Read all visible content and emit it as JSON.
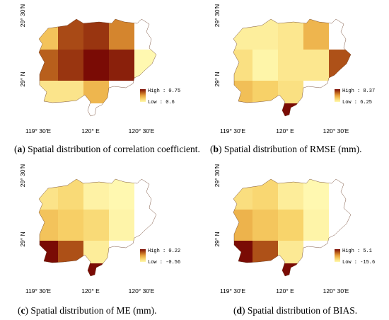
{
  "chart_data": [
    {
      "type": "heatmap",
      "panel_letter": "a",
      "caption": "Spatial distribution of correlation coefficient.",
      "legend": {
        "high_label": "High : 0.75",
        "low_label": "Low : 0.6",
        "high": 0.75,
        "low": 0.6,
        "placement": "bottom-right"
      },
      "x_ticks": [
        "119° 30′E",
        "120° E",
        "120° 30′E"
      ],
      "y_ticks": [
        "29° 30′N",
        "29° N"
      ],
      "grid_cells": [
        {
          "row": 0,
          "col": 0,
          "value": 0.65
        },
        {
          "row": 0,
          "col": 1,
          "value": 0.72
        },
        {
          "row": 0,
          "col": 2,
          "value": 0.73
        },
        {
          "row": 0,
          "col": 3,
          "value": 0.69
        },
        {
          "row": 1,
          "col": 0,
          "value": 0.71
        },
        {
          "row": 1,
          "col": 1,
          "value": 0.73
        },
        {
          "row": 1,
          "col": 2,
          "value": 0.75
        },
        {
          "row": 1,
          "col": 3,
          "value": 0.74
        },
        {
          "row": 1,
          "col": 4,
          "value": 0.6
        },
        {
          "row": 2,
          "col": 0,
          "value": 0.62
        },
        {
          "row": 2,
          "col": 1,
          "value": 0.62
        },
        {
          "row": 2,
          "col": 2,
          "value": 0.66
        }
      ]
    },
    {
      "type": "heatmap",
      "panel_letter": "b",
      "caption": "Spatial distribution of RMSE (mm).",
      "legend": {
        "high_label": "High : 8.37",
        "low_label": "Low : 6.25",
        "high": 8.37,
        "low": 6.25,
        "placement": "bottom-right"
      },
      "x_ticks": [
        "119° 30′E",
        "120° E",
        "120° 30′E"
      ],
      "y_ticks": [
        "29° 30′N",
        "29° N"
      ],
      "grid_cells": [
        {
          "row": 0,
          "col": 0,
          "value": 6.4
        },
        {
          "row": 0,
          "col": 1,
          "value": 6.4
        },
        {
          "row": 0,
          "col": 2,
          "value": 6.5
        },
        {
          "row": 0,
          "col": 3,
          "value": 7.1
        },
        {
          "row": 1,
          "col": 0,
          "value": 6.6
        },
        {
          "row": 1,
          "col": 1,
          "value": 6.3
        },
        {
          "row": 1,
          "col": 2,
          "value": 6.5
        },
        {
          "row": 1,
          "col": 3,
          "value": 6.5
        },
        {
          "row": 1,
          "col": 4,
          "value": 7.9
        },
        {
          "row": 2,
          "col": 0,
          "value": 7.0
        },
        {
          "row": 2,
          "col": 1,
          "value": 6.8
        },
        {
          "row": 2,
          "col": 2,
          "value": 6.6
        },
        {
          "row": 3,
          "col": 2,
          "value": 8.37
        }
      ]
    },
    {
      "type": "heatmap",
      "panel_letter": "c",
      "caption": "Spatial distribution of ME (mm).",
      "legend": {
        "high_label": "High : 0.22",
        "low_label": "Low : -0.56",
        "high": 0.22,
        "low": -0.56,
        "placement": "bottom-right"
      },
      "x_ticks": [
        "119° 30′E",
        "120° E",
        "120° 30′E"
      ],
      "y_ticks": [
        "29° 30′N",
        "29° N"
      ],
      "grid_cells": [
        {
          "row": 0,
          "col": 0,
          "value": -0.45
        },
        {
          "row": 0,
          "col": 1,
          "value": -0.4
        },
        {
          "row": 0,
          "col": 2,
          "value": -0.53
        },
        {
          "row": 0,
          "col": 3,
          "value": -0.56
        },
        {
          "row": 1,
          "col": 0,
          "value": -0.3
        },
        {
          "row": 1,
          "col": 1,
          "value": -0.35
        },
        {
          "row": 1,
          "col": 2,
          "value": -0.4
        },
        {
          "row": 1,
          "col": 3,
          "value": -0.54
        },
        {
          "row": 2,
          "col": 0,
          "value": 0.22
        },
        {
          "row": 2,
          "col": 1,
          "value": 0.05
        },
        {
          "row": 2,
          "col": 2,
          "value": -0.5
        },
        {
          "row": 3,
          "col": 2,
          "value": 0.22
        }
      ]
    },
    {
      "type": "heatmap",
      "panel_letter": "d",
      "caption": "Spatial distribution of BIAS.",
      "legend": {
        "high_label": "High : 5.1",
        "low_label": "Low : -15.6",
        "high": 5.1,
        "low": -15.6,
        "placement": "bottom-right"
      },
      "x_ticks": [
        "119° 30′E",
        "120° E",
        "120° 30′E"
      ],
      "y_ticks": [
        "29° 30′N",
        "29° N"
      ],
      "grid_cells": [
        {
          "row": 0,
          "col": 0,
          "value": -12.0
        },
        {
          "row": 0,
          "col": 1,
          "value": -11.0
        },
        {
          "row": 0,
          "col": 2,
          "value": -14.0
        },
        {
          "row": 0,
          "col": 3,
          "value": -15.6
        },
        {
          "row": 1,
          "col": 0,
          "value": -7.0
        },
        {
          "row": 1,
          "col": 1,
          "value": -9.0
        },
        {
          "row": 1,
          "col": 2,
          "value": -10.5
        },
        {
          "row": 1,
          "col": 3,
          "value": -15.0
        },
        {
          "row": 2,
          "col": 0,
          "value": 5.1
        },
        {
          "row": 2,
          "col": 1,
          "value": 0.5
        },
        {
          "row": 2,
          "col": 2,
          "value": -13.5
        },
        {
          "row": 3,
          "col": 2,
          "value": 5.1
        }
      ]
    }
  ],
  "colors": {
    "ramp_low": "#fff8b0",
    "ramp_mid1": "#f8d36a",
    "ramp_mid2": "#e8a23c",
    "ramp_mid3": "#b55a1a",
    "ramp_high": "#7a0b05"
  }
}
